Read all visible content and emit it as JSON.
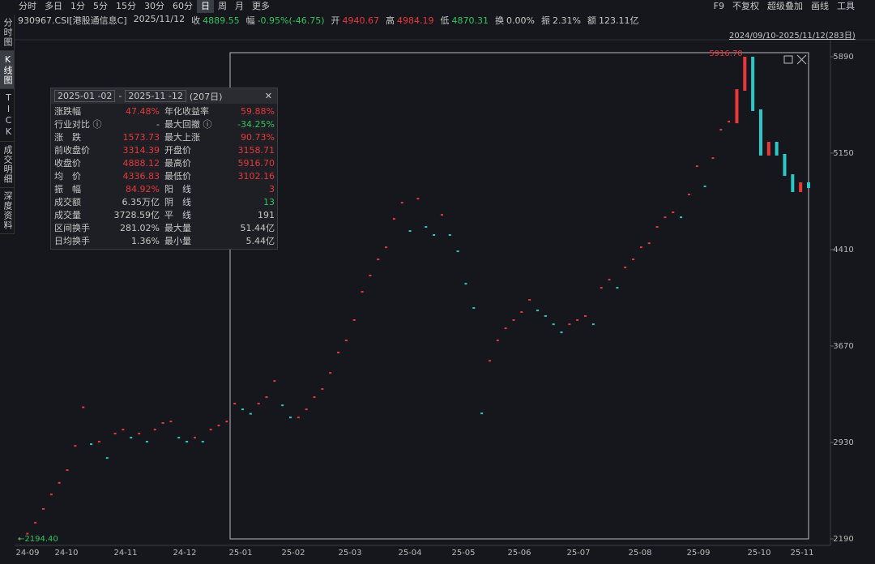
{
  "toolbar": {
    "periods": [
      "分时",
      "多日",
      "1分",
      "5分",
      "15分",
      "30分",
      "60分",
      "日",
      "周",
      "月",
      "更多"
    ],
    "selected": "日",
    "right": [
      "F9",
      "不复权",
      "超级叠加",
      "画线",
      "工具"
    ]
  },
  "side_tabs": [
    "分时图",
    "K线图",
    "TICK",
    "成交明细",
    "深度资料"
  ],
  "side_selected": "K线图",
  "quote": {
    "code": "930967.CSI[港股通信息C]",
    "date": "2025/11/12",
    "items": [
      {
        "label": "收",
        "value": "4889.55",
        "color": "#2fc45e"
      },
      {
        "label": "幅",
        "value": "-0.95%(-46.75)",
        "color": "#2fc45e"
      },
      {
        "label": "开",
        "value": "4940.67",
        "color": "#e8383a"
      },
      {
        "label": "高",
        "value": "4984.19",
        "color": "#e8383a"
      },
      {
        "label": "低",
        "value": "4870.31",
        "color": "#2fc45e"
      },
      {
        "label": "换",
        "value": "0.00%",
        "color": "#c8c8c8"
      },
      {
        "label": "振",
        "value": "2.31%",
        "color": "#c8c8c8"
      },
      {
        "label": "额",
        "value": "123.11亿",
        "color": "#c8c8c8"
      }
    ]
  },
  "range_label": "2024/09/10-2025/11/12(283日)",
  "stats": {
    "start": "2025-01 -02",
    "sep": "-",
    "end": "2025-11 -12",
    "days": "(207日)",
    "cells": [
      {
        "label": "涨跌幅",
        "value": "47.48%",
        "color": "#e8383a"
      },
      {
        "label": "年化收益率",
        "value": "59.88%",
        "color": "#e8383a"
      },
      {
        "label": "行业对比 ⓘ",
        "value": "-",
        "color": "#c8c8c8"
      },
      {
        "label": "最大回撤 ⓘ",
        "value": "-34.25%",
        "color": "#2fc45e"
      },
      {
        "label": "涨　跌",
        "value": "1573.73",
        "color": "#e8383a"
      },
      {
        "label": "最大上涨",
        "value": "90.73%",
        "color": "#e8383a"
      },
      {
        "label": "前收盘价",
        "value": "3314.39",
        "color": "#e8383a"
      },
      {
        "label": "开盘价",
        "value": "3158.71",
        "color": "#e8383a"
      },
      {
        "label": "收盘价",
        "value": "4888.12",
        "color": "#e8383a"
      },
      {
        "label": "最高价",
        "value": "5916.70",
        "color": "#e8383a"
      },
      {
        "label": "均　价",
        "value": "4336.83",
        "color": "#e8383a"
      },
      {
        "label": "最低价",
        "value": "3102.16",
        "color": "#e8383a"
      },
      {
        "label": "振　幅",
        "value": "84.92%",
        "color": "#e8383a"
      },
      {
        "label": "阳　线",
        "value": "3",
        "color": "#e8383a"
      },
      {
        "label": "成交额",
        "value": "6.35万亿",
        "color": "#c8c8c8"
      },
      {
        "label": "阴　线",
        "value": "13",
        "color": "#2fc45e"
      },
      {
        "label": "成交量",
        "value": "3728.59亿",
        "color": "#c8c8c8"
      },
      {
        "label": "平　线",
        "value": "191",
        "color": "#c8c8c8"
      },
      {
        "label": "区间换手",
        "value": "281.02%",
        "color": "#c8c8c8"
      },
      {
        "label": "最大量",
        "value": "51.44亿",
        "color": "#c8c8c8"
      },
      {
        "label": "日均换手",
        "value": "1.36%",
        "color": "#c8c8c8"
      },
      {
        "label": "最小量",
        "value": "5.44亿",
        "color": "#c8c8c8"
      }
    ]
  },
  "chart_data": {
    "type": "kline",
    "up_color": "#e8383a",
    "down_color": "#2bc8c8",
    "values": [
      2190,
      2230,
      2314,
      2420,
      2531,
      2620,
      2718,
      2904,
      3200,
      2917,
      2936,
      2811,
      2998,
      3029,
      2967,
      2998,
      2936,
      3029,
      3079,
      3091,
      2967,
      2936,
      2967,
      2936,
      3029,
      3060,
      3091,
      3228,
      3184,
      3150,
      3228,
      3278,
      3402,
      3215,
      3122,
      3122,
      3184,
      3278,
      3340,
      3464,
      3620,
      3713,
      3869,
      4086,
      4211,
      4335,
      4428,
      4646,
      4770,
      4553,
      4801,
      4584,
      4522,
      4677,
      4522,
      4397,
      4148,
      3962,
      3153,
      3557,
      3713,
      3806,
      3869,
      3931,
      4024,
      3943,
      3900,
      3837,
      3775,
      3837,
      3869,
      3900,
      3837,
      4117,
      4179,
      4117,
      4273,
      4335,
      4428,
      4459,
      4584,
      4658,
      4696,
      4658,
      4833,
      5050,
      4895,
      5112,
      5330,
      5392,
      5641,
      5890,
      5486,
      5144,
      5237,
      5144,
      4988,
      4864,
      4926,
      4895
    ],
    "ylim": [
      2190,
      5890
    ],
    "yticks": [
      5890,
      5150,
      4410,
      3670,
      2930,
      2190
    ],
    "xtick_labels": [
      "24-09",
      "24-10",
      "24-11",
      "24-12",
      "25-01",
      "25-02",
      "25-03",
      "25-04",
      "25-05",
      "25-06",
      "25-07",
      "25-08",
      "25-09",
      "25-10",
      "25-11"
    ],
    "high_label": "5916.70",
    "low_label": "←2194.40"
  }
}
